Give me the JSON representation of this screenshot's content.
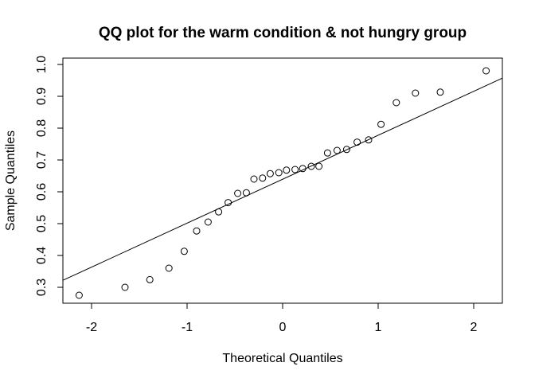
{
  "chart_data": {
    "type": "scatter",
    "title": "QQ plot for the warm condition & not hungry group",
    "xlabel": "Theoretical Quantiles",
    "ylabel": "Sample Quantiles",
    "xlim": [
      -2.3,
      2.3
    ],
    "ylim": [
      0.25,
      1.02
    ],
    "xticks": [
      -2,
      -1,
      0,
      1,
      2
    ],
    "xtick_labels": [
      "-2",
      "-1",
      "0",
      "1",
      "2"
    ],
    "yticks": [
      0.3,
      0.4,
      0.5,
      0.6,
      0.7,
      0.8,
      0.9,
      1.0
    ],
    "ytick_labels": [
      "0.3",
      "0.4",
      "0.5",
      "0.6",
      "0.7",
      "0.8",
      "0.9",
      "1.0"
    ],
    "grid": false,
    "points": [
      {
        "x": -2.13,
        "y": 0.275
      },
      {
        "x": -1.65,
        "y": 0.3
      },
      {
        "x": -1.39,
        "y": 0.324
      },
      {
        "x": -1.19,
        "y": 0.36
      },
      {
        "x": -1.03,
        "y": 0.413
      },
      {
        "x": -0.9,
        "y": 0.477
      },
      {
        "x": -0.78,
        "y": 0.505
      },
      {
        "x": -0.67,
        "y": 0.537
      },
      {
        "x": -0.57,
        "y": 0.566
      },
      {
        "x": -0.47,
        "y": 0.595
      },
      {
        "x": -0.38,
        "y": 0.597
      },
      {
        "x": -0.3,
        "y": 0.64
      },
      {
        "x": -0.21,
        "y": 0.643
      },
      {
        "x": -0.13,
        "y": 0.657
      },
      {
        "x": -0.04,
        "y": 0.66
      },
      {
        "x": 0.04,
        "y": 0.668
      },
      {
        "x": 0.13,
        "y": 0.67
      },
      {
        "x": 0.21,
        "y": 0.673
      },
      {
        "x": 0.3,
        "y": 0.68
      },
      {
        "x": 0.38,
        "y": 0.68
      },
      {
        "x": 0.47,
        "y": 0.722
      },
      {
        "x": 0.57,
        "y": 0.73
      },
      {
        "x": 0.67,
        "y": 0.733
      },
      {
        "x": 0.78,
        "y": 0.756
      },
      {
        "x": 0.9,
        "y": 0.763
      },
      {
        "x": 1.03,
        "y": 0.812
      },
      {
        "x": 1.19,
        "y": 0.88
      },
      {
        "x": 1.39,
        "y": 0.91
      },
      {
        "x": 1.65,
        "y": 0.913
      },
      {
        "x": 2.13,
        "y": 0.98
      }
    ],
    "reference_line": {
      "x1": -2.3,
      "y1": 0.322,
      "x2": 2.3,
      "y2": 0.957
    }
  }
}
